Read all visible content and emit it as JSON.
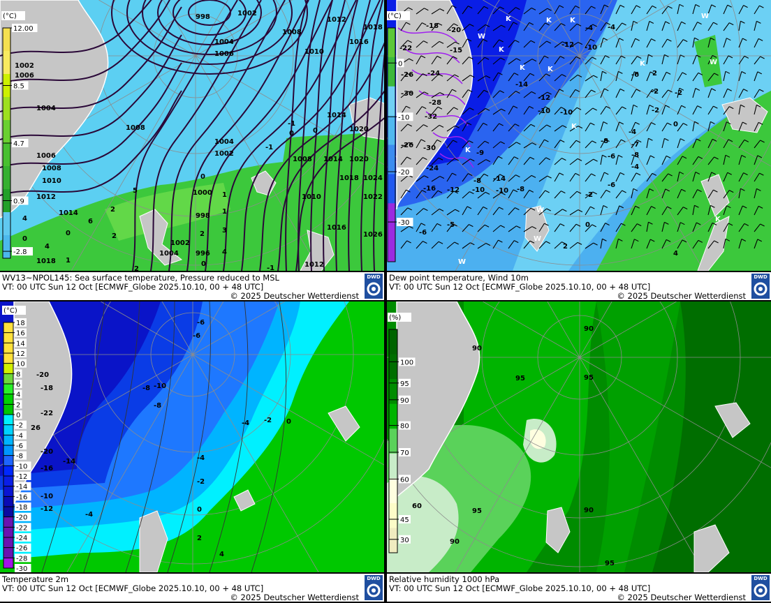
{
  "colors": {
    "land": "#c6c6c6",
    "graticule": "#8c8c8c",
    "isobar": "#2a0838",
    "dwd_blue": "#1f4fa0"
  },
  "panels": [
    {
      "caption": {
        "title": "WV13~NPOL145: Sea surface temperature,  Pressure reduced to MSL",
        "vt": "VT: 00 UTC Sun  12 Oct [ECMWF_Globe 2025.10.10, 00 + 48 UTC]",
        "copyright": "© 2025 Deutscher Wetterdienst",
        "logo": "DWD"
      },
      "legend": {
        "unit": "(°C)",
        "ticks": [
          "12.00",
          "8.5",
          "4.7",
          "0.9",
          "-2.8"
        ],
        "colors": [
          "#f5e050",
          "#f8ea60",
          "#cdf000",
          "#9ee020",
          "#6ad030",
          "#48c030",
          "#36b030",
          "#22a028",
          "#60c8f0",
          "#4cb8ec"
        ]
      },
      "labels": [
        "998",
        "1002",
        "1008",
        "1012",
        "1018",
        "1004",
        "1006",
        "1010",
        "1016",
        "1002",
        "1006",
        "1004",
        "1008",
        "1006",
        "1008",
        "1010",
        "1012",
        "1014",
        "1004",
        "1002",
        "1000",
        "998",
        "996",
        "1002",
        "1004",
        "1018",
        "1008",
        "1014",
        "1020",
        "1018",
        "1024",
        "1010",
        "1022",
        "1016",
        "1026",
        "1012",
        "1014",
        "1020",
        "-1",
        "0",
        "0",
        "-1",
        "0",
        "1",
        "1",
        "2",
        "2",
        "3",
        "4",
        "5",
        "6",
        "2",
        "4",
        "0",
        "-1",
        "2",
        "0",
        "4",
        "1",
        "0"
      ]
    },
    {
      "caption": {
        "title": "Dew point temperature, Wind 10m",
        "vt": "VT: 00 UTC Sun  12 Oct [ECMWF_Globe 2025.10.10,  00 + 48 UTC]",
        "copyright": "© 2025 Deutscher Wetterdienst",
        "logo": "DWD"
      },
      "legend": {
        "unit": "(°C)",
        "ticks": [
          "0",
          "-10",
          "-20",
          "-30"
        ],
        "colors": [
          "#5cc838",
          "#3cb83c",
          "#70d0f4",
          "#50b8f0",
          "#3c8cf0",
          "#2058f0",
          "#9a2ae0",
          "#9a2ae0"
        ]
      },
      "labels": [
        "-12",
        "-10",
        "-14",
        "-12",
        "-10",
        "-10",
        "0",
        "-2",
        "-4",
        "-8",
        "-14",
        "-8",
        "-2",
        "0",
        "2",
        "4",
        "-18",
        "-20",
        "-15",
        "-22",
        "-26",
        "-24",
        "-30",
        "-28",
        "-32",
        "-26",
        "-30",
        "-24",
        "-16",
        "-12",
        "-10",
        "-6",
        "-5",
        "-4",
        "-4",
        "-6",
        "-2",
        "-8",
        "-6",
        "-7",
        "-4",
        "-2",
        "2",
        "-6",
        "-10",
        "-8",
        "-9"
      ],
      "markers": [
        "K",
        "K",
        "K",
        "K",
        "K",
        "K",
        "W",
        "W",
        "W",
        "K",
        "K",
        "W",
        "W",
        "K",
        "W",
        "K"
      ]
    },
    {
      "caption": {
        "title": "Temperature 2m",
        "vt": "VT: 00 UTC Sun  12 Oct [ECMWF_Globe 2025.10.10, 00 + 48 UTC]",
        "copyright": "© 2025 Deutscher Wetterdienst",
        "logo": "DWD"
      },
      "legend": {
        "unit": "(°C)",
        "ticks": [
          "18",
          "16",
          "14",
          "12",
          "10",
          "8",
          "6",
          "4",
          "2",
          "0",
          "-2",
          "-4",
          "-6",
          "-8",
          "-10",
          "-12",
          "-14",
          "-16",
          "-18",
          "-20",
          "-22",
          "-24",
          "-26",
          "-28",
          "-30"
        ],
        "colors": [
          "#ffe13c",
          "#ffe13c",
          "#ffe13c",
          "#ffe13c",
          "#d2f000",
          "#6ed83c",
          "#28f028",
          "#00d200",
          "#00c800",
          "#00f0ff",
          "#00d2ff",
          "#00b4ff",
          "#0096ff",
          "#1e64ff",
          "#0028ff",
          "#0a1ee6",
          "#0a14d2",
          "#0a0ab4",
          "#0a0aa0",
          "#6a14b0",
          "#6a14b0",
          "#6a14b0",
          "#6a14b0",
          "#a014e6"
        ]
      },
      "labels": [
        "-10",
        "-8",
        "-6",
        "-4",
        "-2",
        "0",
        "-4",
        "-2",
        "0",
        "2",
        "4",
        "-14",
        "-18",
        "-22",
        "-20",
        "-10",
        "-4",
        "-12",
        "-6",
        "26",
        "-16",
        "-8",
        "-20"
      ]
    },
    {
      "caption": {
        "title": "Relative humidity 1000 hPa",
        "vt": "VT: 00 UTC Sun  12 Oct [ECMWF_Globe 2025.10.10, 00 + 48 UTC]",
        "copyright": "© 2025 Deutscher Wetterdienst",
        "logo": "DWD"
      },
      "legend": {
        "unit": "(%)",
        "ticks": [
          "100",
          "95",
          "90",
          "80",
          "70",
          "60",
          "45",
          "30"
        ],
        "colors": [
          "#006400",
          "#006e00",
          "#008c00",
          "#00b400",
          "#5ad25a",
          "#c8ecc8",
          "#fffee0",
          "#fcfcc8",
          "#f0ecc0"
        ]
      },
      "labels": [
        "90",
        "95",
        "95",
        "90",
        "90",
        "95",
        "90",
        "95",
        "60"
      ]
    }
  ]
}
